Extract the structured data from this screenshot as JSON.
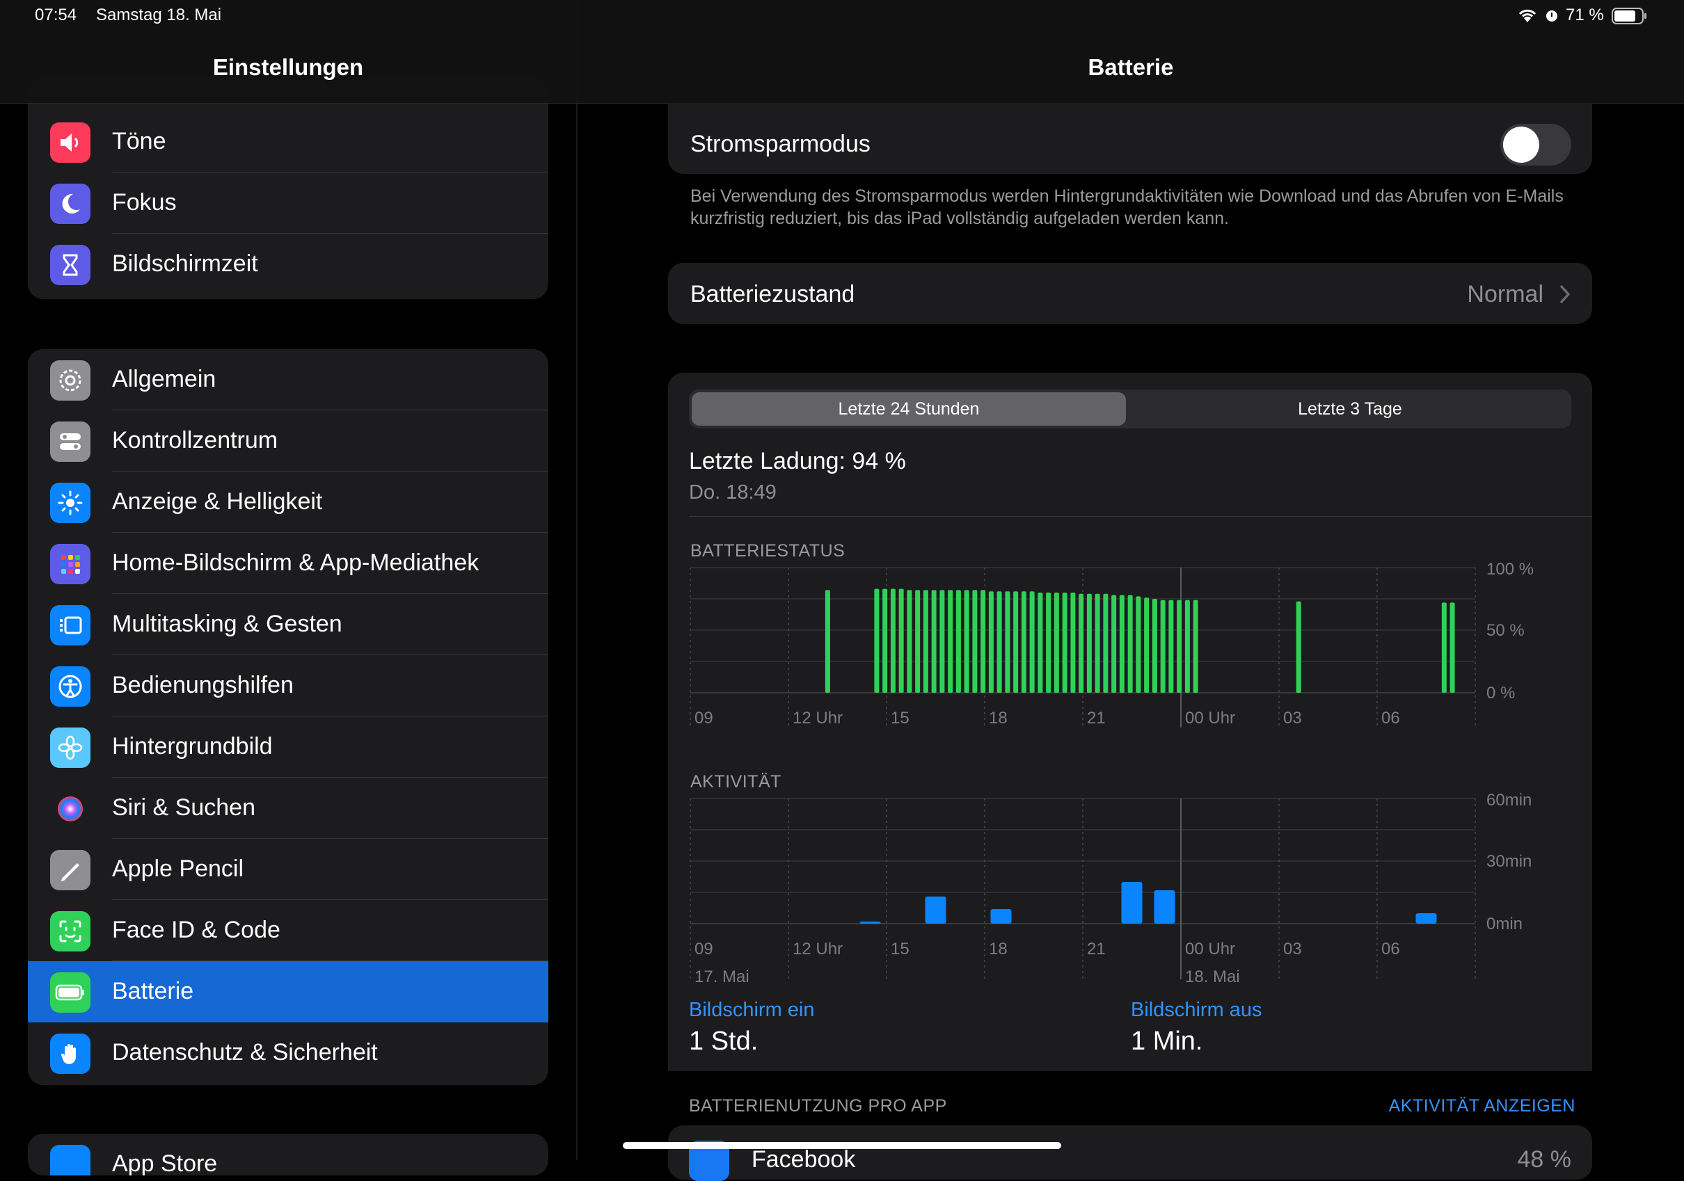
{
  "status_bar": {
    "time": "07:54",
    "date": "Samstag 18. Mai",
    "battery": "71 %"
  },
  "sidebar": {
    "title": "Einstellungen",
    "group1": [
      {
        "label": "Töne",
        "icon": "speaker-icon",
        "color": "#ff3b5c"
      },
      {
        "label": "Fokus",
        "icon": "moon-icon",
        "color": "#5e5ce6"
      },
      {
        "label": "Bildschirmzeit",
        "icon": "hourglass-icon",
        "color": "#5e5ce6"
      }
    ],
    "group2": [
      {
        "label": "Allgemein",
        "icon": "gear-icon",
        "color": "#8e8e93"
      },
      {
        "label": "Kontrollzentrum",
        "icon": "toggles-icon",
        "color": "#8e8e93"
      },
      {
        "label": "Anzeige & Helligkeit",
        "icon": "sun-icon",
        "color": "#0a84ff"
      },
      {
        "label": "Home-Bildschirm & App-Mediathek",
        "icon": "app-grid-icon",
        "color": "#5e5ce6"
      },
      {
        "label": "Multitasking & Gesten",
        "icon": "multitasking-icon",
        "color": "#0a84ff"
      },
      {
        "label": "Bedienungshilfen",
        "icon": "accessibility-icon",
        "color": "#0a84ff"
      },
      {
        "label": "Hintergrundbild",
        "icon": "flower-icon",
        "color": "#5ac8fa"
      },
      {
        "label": "Siri & Suchen",
        "icon": "siri-icon",
        "color": "#1c1c1e"
      },
      {
        "label": "Apple Pencil",
        "icon": "pencil-icon",
        "color": "#8e8e93"
      },
      {
        "label": "Face ID & Code",
        "icon": "face-id-icon",
        "color": "#30d158"
      },
      {
        "label": "Batterie",
        "icon": "battery-icon",
        "color": "#30d158"
      },
      {
        "label": "Datenschutz & Sicherheit",
        "icon": "hand-icon",
        "color": "#0a84ff"
      }
    ],
    "group3_partial": "App Store"
  },
  "detail": {
    "title": "Batterie",
    "low_power": {
      "label": "Stromsparmodus",
      "enabled": false,
      "footer": "Bei Verwendung des Stromsparmodus werden Hintergrundaktivitäten wie Download und das Abrufen von E-Mails kurzfristig reduziert, bis das iPad vollständig aufgeladen werden kann."
    },
    "health": {
      "label": "Batteriezustand",
      "value": "Normal"
    },
    "segments": [
      "Letzte 24 Stunden",
      "Letzte 3 Tage"
    ],
    "segment_selected": 0,
    "last_charge": "Letzte Ladung: 94 %",
    "last_charge_time": "Do. 18:49",
    "battery_section": "BATTERIESTATUS",
    "activity_section": "AKTIVITÄT",
    "x_ticks": [
      "09",
      "12 Uhr",
      "15",
      "18",
      "21",
      "00 Uhr",
      "03",
      "06"
    ],
    "x_dates": [
      "17. Mai",
      "18. Mai"
    ],
    "battery_y_ticks": [
      "100 %",
      "50 %",
      "0 %"
    ],
    "activity_y_ticks": [
      "60min",
      "30min",
      "0min"
    ],
    "screen_on_label": "Bildschirm ein",
    "screen_on_value": "1 Std.",
    "screen_off_label": "Bildschirm aus",
    "screen_off_value": "1 Min.",
    "usage_section": "BATTERIENUTZUNG PRO APP",
    "usage_link": "AKTIVITÄT ANZEIGEN",
    "first_app_partial": "Facebook",
    "first_app_pct_partial": "48 %"
  },
  "colors": {
    "accent": "#0a84ff",
    "selected_row": "#1668d4",
    "battery_bar": "#30d158",
    "activity_bar": "#0a84ff"
  },
  "chart_data": [
    {
      "type": "bar",
      "title": "BATTERIESTATUS",
      "x_unit": "hours since 09:00 (17. Mai)",
      "ylim": [
        0,
        100
      ],
      "bars": [
        {
          "x": 4.2,
          "y": 82
        },
        {
          "x": 5.7,
          "y": 83
        },
        {
          "x": 5.95,
          "y": 83
        },
        {
          "x": 6.2,
          "y": 83
        },
        {
          "x": 6.45,
          "y": 83
        },
        {
          "x": 6.7,
          "y": 82
        },
        {
          "x": 6.95,
          "y": 82
        },
        {
          "x": 7.2,
          "y": 82
        },
        {
          "x": 7.45,
          "y": 82
        },
        {
          "x": 7.7,
          "y": 82
        },
        {
          "x": 7.95,
          "y": 82
        },
        {
          "x": 8.2,
          "y": 82
        },
        {
          "x": 8.45,
          "y": 82
        },
        {
          "x": 8.7,
          "y": 82
        },
        {
          "x": 8.95,
          "y": 82
        },
        {
          "x": 9.2,
          "y": 81
        },
        {
          "x": 9.45,
          "y": 81
        },
        {
          "x": 9.7,
          "y": 81
        },
        {
          "x": 9.95,
          "y": 81
        },
        {
          "x": 10.2,
          "y": 81
        },
        {
          "x": 10.45,
          "y": 81
        },
        {
          "x": 10.7,
          "y": 80
        },
        {
          "x": 10.95,
          "y": 80
        },
        {
          "x": 11.2,
          "y": 80
        },
        {
          "x": 11.45,
          "y": 80
        },
        {
          "x": 11.7,
          "y": 80
        },
        {
          "x": 11.95,
          "y": 79
        },
        {
          "x": 12.2,
          "y": 79
        },
        {
          "x": 12.45,
          "y": 79
        },
        {
          "x": 12.7,
          "y": 79
        },
        {
          "x": 12.95,
          "y": 78
        },
        {
          "x": 13.2,
          "y": 78
        },
        {
          "x": 13.45,
          "y": 78
        },
        {
          "x": 13.7,
          "y": 77
        },
        {
          "x": 13.95,
          "y": 76
        },
        {
          "x": 14.2,
          "y": 75
        },
        {
          "x": 14.45,
          "y": 74
        },
        {
          "x": 14.7,
          "y": 74
        },
        {
          "x": 14.95,
          "y": 74
        },
        {
          "x": 15.2,
          "y": 74
        },
        {
          "x": 15.45,
          "y": 74
        },
        {
          "x": 18.6,
          "y": 73
        },
        {
          "x": 23.05,
          "y": 72
        },
        {
          "x": 23.3,
          "y": 72
        }
      ]
    },
    {
      "type": "bar",
      "title": "AKTIVITÄT",
      "x_unit": "hours since 09:00 (17. Mai)",
      "ylim": [
        0,
        60
      ],
      "bars": [
        {
          "x": 5.5,
          "y": 1
        },
        {
          "x": 7.5,
          "y": 13
        },
        {
          "x": 9.5,
          "y": 7
        },
        {
          "x": 13.5,
          "y": 20
        },
        {
          "x": 14.5,
          "y": 16
        },
        {
          "x": 22.5,
          "y": 5
        }
      ]
    }
  ]
}
